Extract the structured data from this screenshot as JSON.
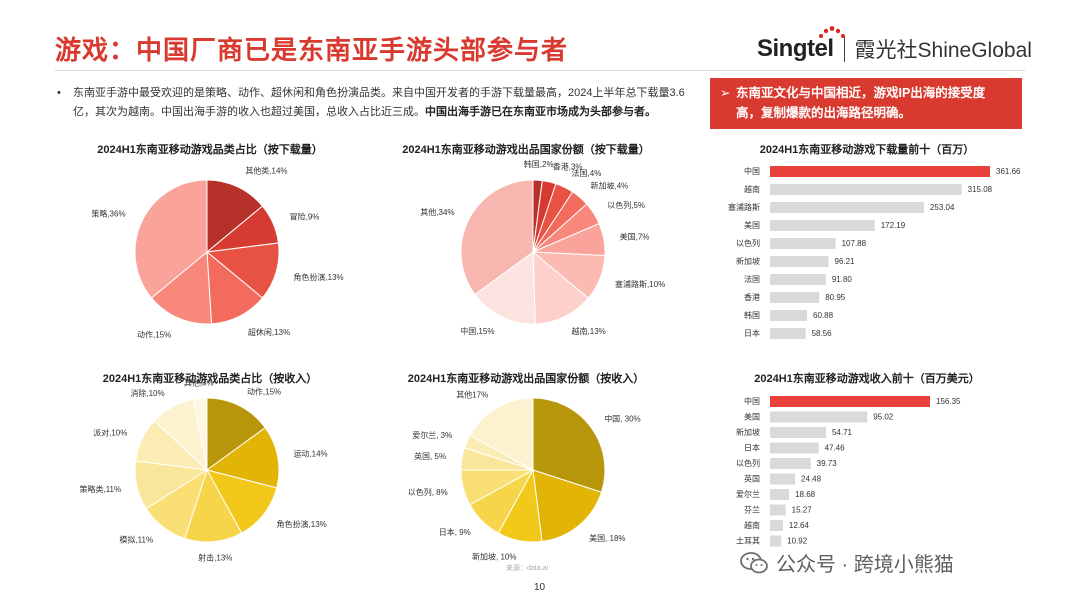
{
  "header": {
    "title": "游戏：中国厂商已是东南亚手游头部参与者",
    "logo_brand": "Singtel",
    "logo_partner": "霞光社ShineGlobal"
  },
  "bullet": {
    "part1": "东南亚手游中最受欢迎的是策略、动作、超休闲和角色扮演品类。来自中国开发者的手游下载量最高，2024上半年总下载量3.6亿，其次为越南。中国出海手游的收入也超过美国，总收入占比近三成。",
    "part2": "中国出海手游已在东南亚市场成为头部参与者。"
  },
  "callout": {
    "text": "东南亚文化与中国相近，游戏IP出海的接受度高，复制爆款的出海路径明确。"
  },
  "colors": {
    "accent": "#d93a2f",
    "bar_highlight": "#e8403a",
    "bar_default": "#d9d9d9",
    "pie_red": [
      "#b5312a",
      "#d63b31",
      "#e85243",
      "#f26b5c",
      "#f7887b",
      "#f9a39a",
      "#fbbab2",
      "#fdd0cb",
      "#fde3e0",
      "#f7b7b0"
    ],
    "pie_gold": [
      "#b8960c",
      "#e2b406",
      "#f2c81a",
      "#f7d54a",
      "#f9df74",
      "#fae69a",
      "#fbecb6",
      "#fcf2cf",
      "#fdf6e0",
      "#f6dd8c"
    ]
  },
  "chart_data": [
    {
      "id": "pie1",
      "type": "pie",
      "title": "2024H1东南亚移动游戏品类占比（按下载量）",
      "slices": [
        {
          "label": "其他类,14%",
          "value": 14
        },
        {
          "label": "冒险,9%",
          "value": 9
        },
        {
          "label": "角色扮演,13%",
          "value": 13
        },
        {
          "label": "超休闲,13%",
          "value": 13
        },
        {
          "label": "动作,15%",
          "value": 15
        },
        {
          "label": "策略,36%",
          "value": 36
        }
      ]
    },
    {
      "id": "pie2",
      "type": "pie",
      "title": "2024H1东南亚移动游戏出品国家份额（按下载量）",
      "slices": [
        {
          "label": "韩国,2%",
          "value": 2
        },
        {
          "label": "香港,3%",
          "value": 3
        },
        {
          "label": "法国,4%",
          "value": 4
        },
        {
          "label": "新加坡,4%",
          "value": 4
        },
        {
          "label": "以色列,5%",
          "value": 5
        },
        {
          "label": "美国,7%",
          "value": 7
        },
        {
          "label": "塞浦路斯,10%",
          "value": 10
        },
        {
          "label": "越南,13%",
          "value": 13
        },
        {
          "label": "中国,15%",
          "value": 15
        },
        {
          "label": "其他,34%",
          "value": 34
        }
      ]
    },
    {
      "id": "bar1",
      "type": "bar",
      "title": "2024H1东南亚移动游戏下载量前十（百万）",
      "categories": [
        "中国",
        "越南",
        "塞浦路斯",
        "美国",
        "以色列",
        "新加坡",
        "法国",
        "香港",
        "韩国",
        "日本"
      ],
      "values": [
        361.66,
        315.08,
        253.04,
        172.19,
        107.88,
        96.21,
        91.8,
        80.95,
        60.88,
        58.56
      ],
      "value_labels": [
        "361.66",
        "315.08",
        "253.04",
        "172.19",
        "107.88",
        "96.21",
        "91.80",
        "80.95",
        "60.88",
        "58.56"
      ]
    },
    {
      "id": "pie3",
      "type": "pie",
      "title": "2024H1东南亚移动游戏品类占比（按收入）",
      "slices": [
        {
          "label": "动作,15%",
          "value": 15
        },
        {
          "label": "运动,14%",
          "value": 14
        },
        {
          "label": "角色扮演,13%",
          "value": 13
        },
        {
          "label": "射击,13%",
          "value": 13
        },
        {
          "label": "模拟,11%",
          "value": 11
        },
        {
          "label": "策略类,11%",
          "value": 11
        },
        {
          "label": "派对,10%",
          "value": 10
        },
        {
          "label": "消除,10%",
          "value": 10
        },
        {
          "label": "其他,3%",
          "value": 3
        }
      ]
    },
    {
      "id": "pie4",
      "type": "pie",
      "title": "2024H1东南亚移动游戏出品国家份额（按收入）",
      "slices": [
        {
          "label": "中国, 30%",
          "value": 30
        },
        {
          "label": "美国, 18%",
          "value": 18
        },
        {
          "label": "新加坡, 10%",
          "value": 10
        },
        {
          "label": "日本, 9%",
          "value": 9
        },
        {
          "label": "以色列, 8%",
          "value": 8
        },
        {
          "label": "英国, 5%",
          "value": 5
        },
        {
          "label": "爱尔兰, 3%",
          "value": 3
        },
        {
          "label": "其他17%",
          "value": 17
        }
      ]
    },
    {
      "id": "bar2",
      "type": "bar",
      "title": "2024H1东南亚移动游戏收入前十（百万美元）",
      "categories": [
        "中国",
        "美国",
        "新加坡",
        "日本",
        "以色列",
        "英国",
        "爱尔兰",
        "芬兰",
        "越南",
        "土耳其"
      ],
      "values": [
        156.35,
        95.02,
        54.71,
        47.46,
        39.73,
        24.48,
        18.68,
        15.27,
        12.64,
        10.92
      ],
      "value_labels": [
        "156.35",
        "95.02",
        "54.71",
        "47.46",
        "39.73",
        "24.48",
        "18.68",
        "15.27",
        "12.64",
        "10.92"
      ]
    }
  ],
  "footer": {
    "source": "来源：data.ai",
    "page_number": "10",
    "watermark": "公众号 · 跨境小熊猫"
  }
}
